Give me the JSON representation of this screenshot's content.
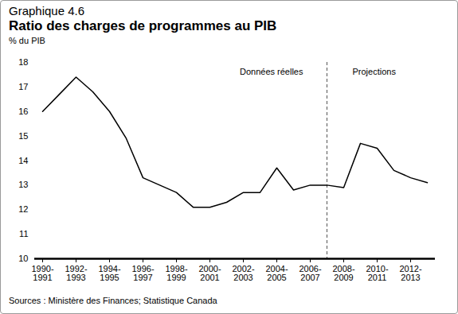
{
  "chart_data": {
    "type": "line",
    "subtitle": "Graphique 4.6",
    "title": "Ratio des charges de programmes au PIB",
    "y_label": "% du PIB",
    "source": "Sources : Ministère des Finances; Statistique Canada",
    "categories": [
      "1990-\n1991",
      null,
      "1992-\n1993",
      null,
      "1994-\n1995",
      null,
      "1996-\n1997",
      null,
      "1998-\n1999",
      null,
      "2000-\n2001",
      null,
      "2002-\n2003",
      null,
      "2004-\n2005",
      null,
      "2006-\n2007",
      null,
      "2008-\n2009",
      null,
      "2010-\n2011",
      null,
      "2012-\n2013",
      null
    ],
    "values": [
      16.0,
      16.7,
      17.4,
      16.8,
      16.0,
      14.9,
      13.3,
      13.0,
      12.7,
      12.1,
      12.1,
      12.3,
      12.7,
      12.7,
      13.7,
      12.8,
      13.0,
      13.0,
      12.9,
      14.7,
      14.5,
      13.6,
      13.3,
      13.1
    ],
    "color": "#000000",
    "ylim": [
      10,
      18
    ],
    "yticks": [
      10,
      11,
      12,
      13,
      14,
      15,
      16,
      17,
      18
    ],
    "grid": false,
    "divider": 17,
    "annotations": [
      {
        "text": "Données réelles"
      },
      {
        "text": "Projections"
      }
    ]
  }
}
